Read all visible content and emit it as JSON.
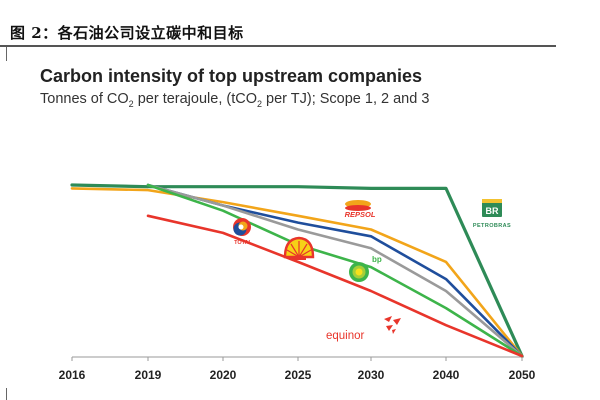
{
  "figure": {
    "label": "图 2：各石油公司设立碳中和目标"
  },
  "chart_data": {
    "type": "line",
    "title": "Carbon intensity of top upstream companies",
    "subtitle": {
      "prefix": "Tonnes of CO",
      "sub1": "2",
      "middle": " per terajoule, (tCO",
      "sub2": "2",
      "suffix": " per TJ); Scope 1, 2 and 3"
    },
    "categories": [
      "2016",
      "2019",
      "2020",
      "2025",
      "2030",
      "2040",
      "2050"
    ],
    "ylim": [
      0,
      100
    ],
    "grid": false,
    "series": [
      {
        "name": "Petrobras",
        "logo": "PETROBRAS",
        "color": "#2e8b57",
        "values": [
          100,
          99,
          99,
          99,
          98,
          98,
          0
        ]
      },
      {
        "name": "Repsol",
        "logo": "REPSOL",
        "color": "#f2a51a",
        "values": [
          98,
          97,
          90,
          82,
          74,
          55,
          0
        ]
      },
      {
        "name": "Total",
        "logo": "TOTAL",
        "color": "#1f4e9c",
        "values": [
          null,
          100,
          88,
          78,
          70,
          45,
          0
        ]
      },
      {
        "name": "Shell",
        "logo": "SHELL",
        "color": "#9a9a9a",
        "values": [
          null,
          100,
          88,
          74,
          63,
          38,
          0
        ]
      },
      {
        "name": "bp",
        "logo": "bp",
        "color": "#3db44a",
        "values": [
          null,
          100,
          85,
          65,
          52,
          28,
          0
        ]
      },
      {
        "name": "Equinor",
        "logo": "equinor",
        "color": "#e8352b",
        "values": [
          null,
          82,
          72,
          55,
          38,
          18,
          0
        ]
      }
    ]
  }
}
